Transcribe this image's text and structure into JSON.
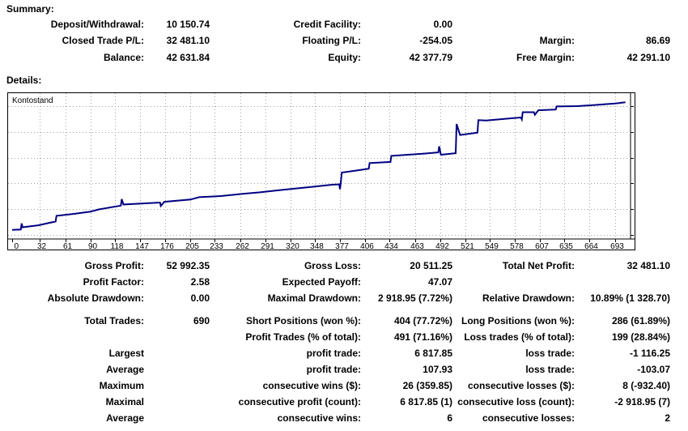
{
  "summary": {
    "heading": "Summary:",
    "deposit_withdrawal": {
      "label": "Deposit/Withdrawal:",
      "value": "10 150.74"
    },
    "credit_facility": {
      "label": "Credit Facility:",
      "value": "0.00"
    },
    "closed_trade_pl": {
      "label": "Closed Trade P/L:",
      "value": "32 481.10"
    },
    "floating_pl": {
      "label": "Floating P/L:",
      "value": "-254.05"
    },
    "margin": {
      "label": "Margin:",
      "value": "86.69"
    },
    "balance": {
      "label": "Balance:",
      "value": "42 631.84"
    },
    "equity": {
      "label": "Equity:",
      "value": "42 377.79"
    },
    "free_margin": {
      "label": "Free Margin:",
      "value": "42 291.10"
    }
  },
  "details": {
    "heading": "Details:",
    "gross_profit": {
      "label": "Gross Profit:",
      "value": "52 992.35"
    },
    "gross_loss": {
      "label": "Gross Loss:",
      "value": "20 511.25"
    },
    "total_net_profit": {
      "label": "Total Net Profit:",
      "value": "32 481.10"
    },
    "profit_factor": {
      "label": "Profit Factor:",
      "value": "2.58"
    },
    "expected_payoff": {
      "label": "Expected Payoff:",
      "value": "47.07"
    },
    "absolute_drawdown": {
      "label": "Absolute Drawdown:",
      "value": "0.00"
    },
    "maximal_drawdown": {
      "label": "Maximal Drawdown:",
      "value": "2 918.95 (7.72%)"
    },
    "relative_drawdown": {
      "label": "Relative Drawdown:",
      "value": "10.89% (1 328.70)"
    },
    "total_trades": {
      "label": "Total Trades:",
      "value": "690"
    },
    "short_positions": {
      "label": "Short Positions (won %):",
      "value": "404 (77.72%)"
    },
    "long_positions": {
      "label": "Long Positions (won %):",
      "value": "286 (61.89%)"
    },
    "profit_trades": {
      "label": "Profit Trades (% of total):",
      "value": "491 (71.16%)"
    },
    "loss_trades": {
      "label": "Loss trades (% of total):",
      "value": "199 (28.84%)"
    },
    "rows": [
      {
        "left": "Largest",
        "mid_label": "profit trade:",
        "mid_value": "6 817.85",
        "right_label": "loss trade:",
        "right_value": "-1 116.25"
      },
      {
        "left": "Average",
        "mid_label": "profit trade:",
        "mid_value": "107.93",
        "right_label": "loss trade:",
        "right_value": "-103.07"
      },
      {
        "left": "Maximum",
        "mid_label": "consecutive wins ($):",
        "mid_value": "26 (359.85)",
        "right_label": "consecutive losses ($):",
        "right_value": "8 (-932.40)"
      },
      {
        "left": "Maximal",
        "mid_label": "consecutive profit (count):",
        "mid_value": "6 817.85 (1)",
        "right_label": "consecutive loss (count):",
        "right_value": "-2 918.95 (7)"
      },
      {
        "left": "Average",
        "mid_label": "consecutive wins:",
        "mid_value": "6",
        "right_label": "consecutive losses:",
        "right_value": "2"
      }
    ]
  },
  "chart_data": {
    "type": "line",
    "title": "Kontostand",
    "xlabel": "",
    "ylabel": "",
    "x_ticks": [
      0,
      32,
      61,
      90,
      118,
      147,
      176,
      205,
      233,
      262,
      291,
      320,
      348,
      377,
      406,
      434,
      463,
      492,
      521,
      549,
      578,
      607,
      635,
      664,
      693
    ],
    "y_ticks": [
      8368,
      15153,
      21937,
      28722,
      35506,
      42291
    ],
    "xlim": [
      0,
      711
    ],
    "ylim": [
      8368,
      42291
    ],
    "grid": true,
    "line_color": "#000080",
    "series": [
      {
        "points": [
          [
            0,
            9700
          ],
          [
            10,
            9800
          ],
          [
            11,
            11400
          ],
          [
            12,
            10400
          ],
          [
            30,
            10900
          ],
          [
            50,
            11900
          ],
          [
            51,
            13400
          ],
          [
            70,
            13900
          ],
          [
            90,
            14500
          ],
          [
            100,
            15100
          ],
          [
            125,
            16100
          ],
          [
            126,
            17800
          ],
          [
            128,
            16400
          ],
          [
            170,
            16900
          ],
          [
            171,
            16000
          ],
          [
            175,
            17100
          ],
          [
            205,
            17700
          ],
          [
            215,
            18300
          ],
          [
            240,
            18600
          ],
          [
            265,
            19200
          ],
          [
            285,
            19600
          ],
          [
            305,
            20100
          ],
          [
            330,
            20700
          ],
          [
            348,
            21100
          ],
          [
            368,
            21600
          ],
          [
            376,
            21700
          ],
          [
            377,
            20400
          ],
          [
            379,
            24800
          ],
          [
            395,
            25300
          ],
          [
            410,
            25800
          ],
          [
            411,
            27300
          ],
          [
            435,
            27600
          ],
          [
            436,
            29200
          ],
          [
            455,
            29500
          ],
          [
            475,
            29800
          ],
          [
            490,
            30100
          ],
          [
            491,
            31700
          ],
          [
            493,
            29500
          ],
          [
            510,
            29900
          ],
          [
            511,
            37600
          ],
          [
            515,
            34700
          ],
          [
            535,
            35300
          ],
          [
            536,
            38600
          ],
          [
            545,
            38500
          ],
          [
            585,
            39300
          ],
          [
            586,
            38800
          ],
          [
            587,
            40700
          ],
          [
            600,
            40700
          ],
          [
            601,
            40000
          ],
          [
            605,
            41200
          ],
          [
            625,
            41400
          ],
          [
            626,
            42200
          ],
          [
            650,
            42300
          ],
          [
            670,
            42600
          ],
          [
            693,
            43000
          ],
          [
            705,
            43300
          ]
        ]
      }
    ]
  }
}
